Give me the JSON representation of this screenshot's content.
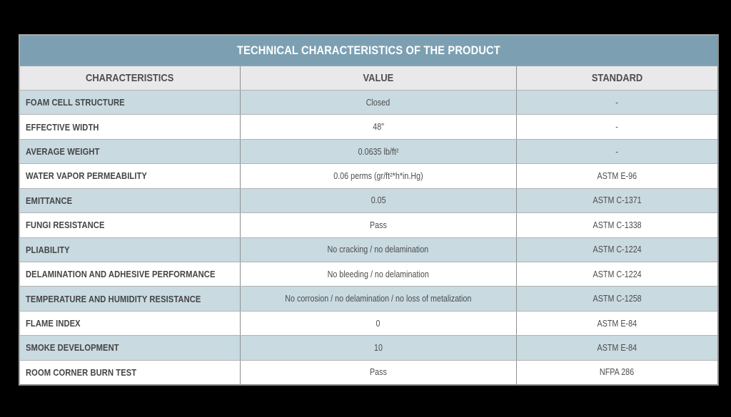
{
  "colors": {
    "page_background": "#000000",
    "title_bar_bg": "#7CA0B2",
    "title_text": "#FFFFFF",
    "header_row_bg": "#E9E9EC",
    "alt_row_bg": "#C9DAE1",
    "row_bg": "#FFFFFF",
    "body_text": "#4D4D4D",
    "column_divider": "#8F8F8F",
    "row_divider": "#B3B3B3"
  },
  "table": {
    "title": "TECHNICAL CHARACTERISTICS OF THE PRODUCT",
    "columns": {
      "characteristics": "CHARACTERISTICS",
      "value": "VALUE",
      "standard": "STANDARD"
    },
    "rows": [
      {
        "characteristic": "FOAM CELL STRUCTURE",
        "value": "Closed",
        "standard": "-"
      },
      {
        "characteristic": "EFFECTIVE WIDTH",
        "value": "48\"",
        "standard": "-"
      },
      {
        "characteristic": "AVERAGE WEIGHT",
        "value": "0.0635 lb/ft²",
        "standard": "-"
      },
      {
        "characteristic": "WATER VAPOR PERMEABILITY",
        "value": "0.06 perms (gr/ft²*h*in.Hg)",
        "standard": "ASTM E-96"
      },
      {
        "characteristic": "EMITTANCE",
        "value": "0.05",
        "standard": "ASTM C-1371"
      },
      {
        "characteristic": "FUNGI RESISTANCE",
        "value": "Pass",
        "standard": "ASTM C-1338"
      },
      {
        "characteristic": "PLIABILITY",
        "value": "No cracking / no delamination",
        "standard": "ASTM C-1224"
      },
      {
        "characteristic": "DELAMINATION AND ADHESIVE PERFORMANCE",
        "value": "No bleeding / no delamination",
        "standard": "ASTM C-1224"
      },
      {
        "characteristic": "TEMPERATURE AND HUMIDITY RESISTANCE",
        "value": "No corrosion / no delamination / no loss of metalization",
        "standard": "ASTM C-1258"
      },
      {
        "characteristic": "FLAME INDEX",
        "value": "0",
        "standard": "ASTM E-84"
      },
      {
        "characteristic": "SMOKE DEVELOPMENT",
        "value": "10",
        "standard": "ASTM E-84"
      },
      {
        "characteristic": "ROOM CORNER BURN TEST",
        "value": "Pass",
        "standard": "NFPA 286"
      }
    ]
  }
}
